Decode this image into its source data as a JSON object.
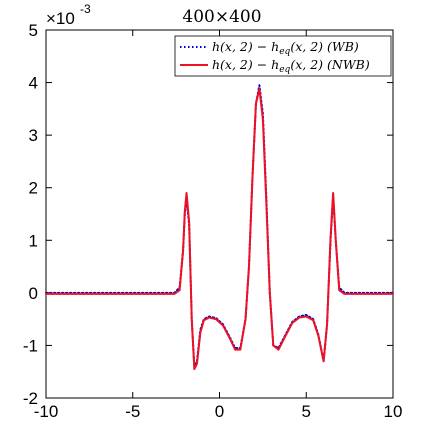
{
  "chart_data": {
    "type": "line",
    "title": "400×400",
    "xlabel": "",
    "ylabel": "",
    "xlim": [
      -10,
      10
    ],
    "ylim": [
      -2,
      5
    ],
    "y_scale_label": "×10",
    "y_scale_exponent": "-3",
    "x_ticks": [
      -10,
      -5,
      0,
      5,
      10
    ],
    "x_tick_labels": [
      "-10",
      "-5",
      "0",
      "5",
      "10"
    ],
    "y_ticks": [
      -2,
      -1,
      0,
      1,
      2,
      3,
      4,
      5
    ],
    "y_tick_labels": [
      "-2",
      "-1",
      "0",
      "1",
      "2",
      "3",
      "4",
      "5"
    ],
    "grid": false,
    "legend_position": "top-right",
    "series": [
      {
        "name": "h(x, 2) − h_eq(x, 2) (WB)",
        "color": "#0000cc",
        "style": "dotted",
        "x": [
          -10,
          -2.6,
          -2.3,
          -2.1,
          -2.0,
          -1.9,
          -1.75,
          -1.6,
          -1.45,
          -1.3,
          -1.1,
          -0.9,
          -0.6,
          -0.2,
          0.2,
          0.6,
          0.9,
          1.2,
          1.5,
          1.7,
          1.9,
          2.1,
          2.3,
          2.5,
          2.7,
          2.9,
          3.1,
          3.4,
          3.8,
          4.2,
          4.6,
          5.0,
          5.4,
          5.7,
          6.0,
          6.2,
          6.4,
          6.55,
          6.7,
          6.9,
          7.2,
          10
        ],
        "y": [
          0,
          0,
          0.1,
          0.8,
          1.5,
          1.8,
          1.3,
          -0.5,
          -1.4,
          -1.3,
          -0.7,
          -0.5,
          -0.45,
          -0.48,
          -0.6,
          -0.85,
          -1.05,
          -1.05,
          -0.5,
          0.5,
          2.2,
          3.6,
          3.95,
          3.4,
          1.8,
          0.0,
          -1.0,
          -1.05,
          -0.8,
          -0.55,
          -0.45,
          -0.42,
          -0.5,
          -0.8,
          -1.3,
          -0.6,
          1.0,
          1.85,
          1.0,
          0.1,
          0,
          0
        ]
      },
      {
        "name": "h(x, 2) − h_eq(x, 2) (NWB)",
        "color": "#ee1122",
        "style": "solid",
        "x": [
          -10,
          -2.6,
          -2.3,
          -2.1,
          -2.0,
          -1.9,
          -1.75,
          -1.6,
          -1.45,
          -1.3,
          -1.1,
          -0.9,
          -0.6,
          -0.2,
          0.2,
          0.6,
          0.9,
          1.2,
          1.5,
          1.7,
          1.9,
          2.1,
          2.3,
          2.5,
          2.7,
          2.9,
          3.1,
          3.4,
          3.8,
          4.2,
          4.6,
          5.0,
          5.4,
          5.7,
          6.0,
          6.2,
          6.4,
          6.55,
          6.7,
          6.9,
          7.2,
          10
        ],
        "y": [
          -0.02,
          -0.02,
          0.05,
          0.8,
          1.55,
          1.9,
          1.35,
          -0.5,
          -1.45,
          -1.35,
          -0.75,
          -0.52,
          -0.47,
          -0.5,
          -0.62,
          -0.87,
          -1.08,
          -1.08,
          -0.5,
          0.5,
          2.2,
          3.6,
          3.88,
          3.3,
          1.7,
          0.0,
          -1.0,
          -1.08,
          -0.82,
          -0.57,
          -0.47,
          -0.45,
          -0.52,
          -0.82,
          -1.3,
          -0.6,
          1.05,
          1.9,
          1.0,
          0.05,
          -0.02,
          -0.02
        ]
      }
    ],
    "legend_labels_display": [
      "h(x, 2) − h",
      "eq",
      "(x, 2) (WB)",
      "h(x, 2) − h",
      "eq",
      "(x, 2) (NWB)"
    ]
  }
}
